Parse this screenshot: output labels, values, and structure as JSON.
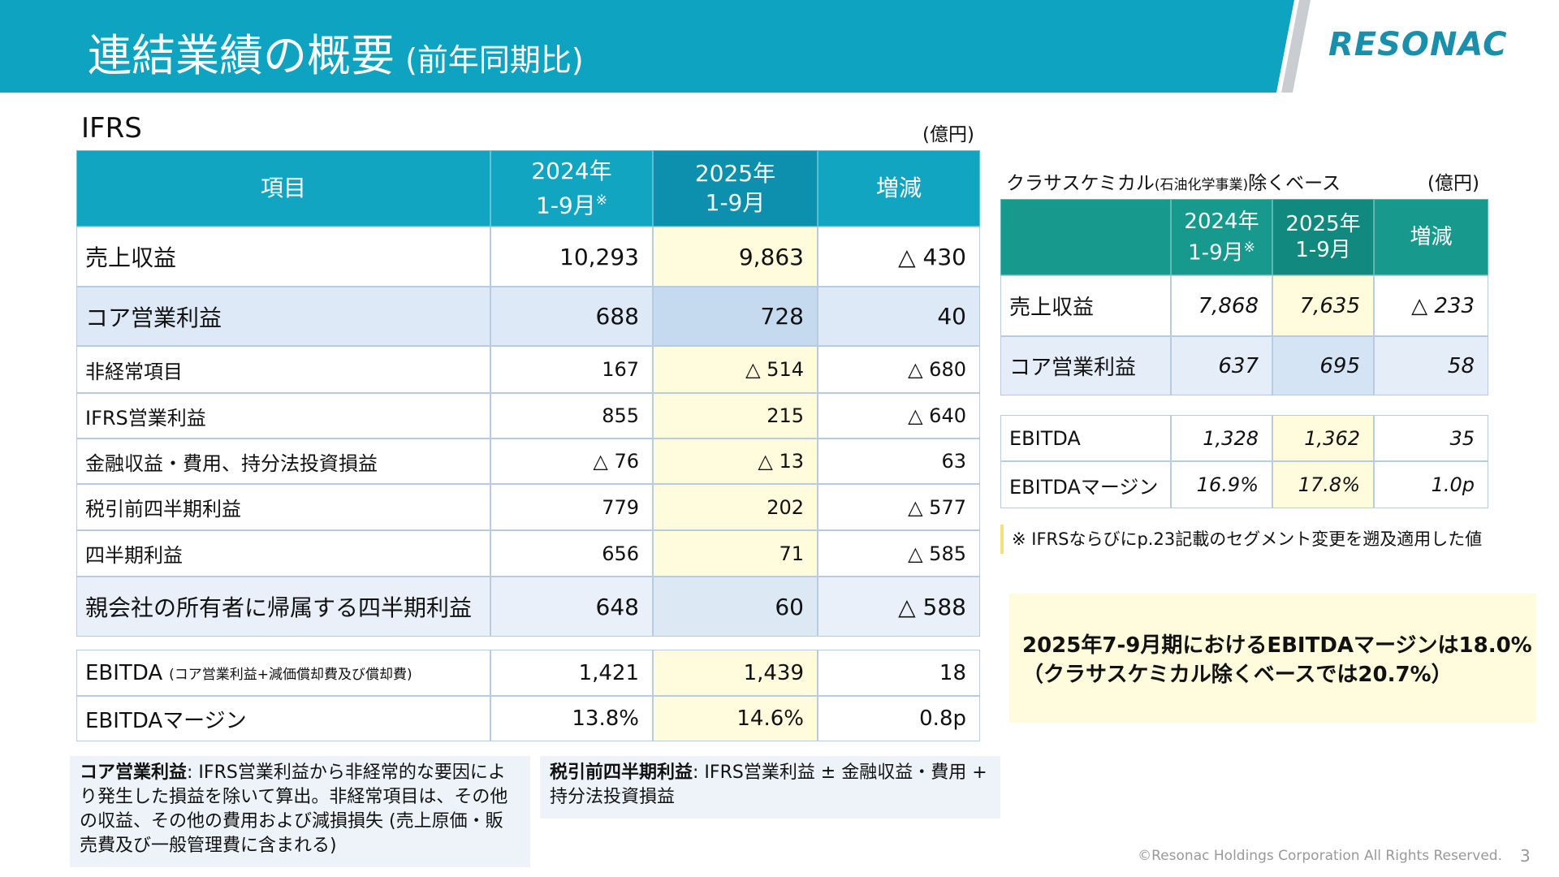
{
  "header": {
    "title": "連結業績の概要",
    "subtitle": "(前年同期比)",
    "logo": "RESONAC"
  },
  "ifrs_table": {
    "label": "IFRS",
    "unit": "(億円)",
    "columns": [
      {
        "lines": [
          "項目"
        ]
      },
      {
        "lines": [
          "2024年",
          "1-9月"
        ],
        "note": "※"
      },
      {
        "lines": [
          "2025年",
          "1-9月"
        ]
      },
      {
        "lines": [
          "増減"
        ]
      }
    ],
    "rows": [
      {
        "label": "売上収益",
        "values": [
          "10,293",
          "9,863",
          "△ 430"
        ]
      },
      {
        "label": "コア営業利益",
        "values": [
          "688",
          "728",
          "40"
        ]
      },
      {
        "label": "非経常項目",
        "values": [
          "167",
          "△ 514",
          "△ 680"
        ]
      },
      {
        "label": "IFRS営業利益",
        "values": [
          "855",
          "215",
          "△ 640"
        ]
      },
      {
        "label": "金融収益・費用、持分法投資損益",
        "values": [
          "△ 76",
          "△ 13",
          "63"
        ]
      },
      {
        "label": "税引前四半期利益",
        "values": [
          "779",
          "202",
          "△ 577"
        ]
      },
      {
        "label": "四半期利益",
        "values": [
          "656",
          "71",
          "△ 585"
        ]
      },
      {
        "label": "親会社の所有者に帰属する四半期利益",
        "values": [
          "648",
          "60",
          "△ 588"
        ]
      }
    ],
    "ebitda_rows": [
      {
        "label": "EBITDA",
        "sublabel": "(コア営業利益+減価償却費及び償却費)",
        "values": [
          "1,421",
          "1,439",
          "18"
        ]
      },
      {
        "label": "EBITDAマージン",
        "values": [
          "13.8%",
          "14.6%",
          "0.8p"
        ]
      }
    ]
  },
  "ex_table": {
    "title": "クラサスケミカル",
    "title_small": "(石油化学事業)",
    "title_end": "除くベース",
    "unit": "(億円)",
    "columns": [
      {
        "lines": []
      },
      {
        "lines": [
          "2024年",
          "1-9月"
        ],
        "note": "※"
      },
      {
        "lines": [
          "2025年",
          "1-9月"
        ]
      },
      {
        "lines": [
          "増減"
        ]
      }
    ],
    "rows": [
      {
        "label": "売上収益",
        "values": [
          "7,868",
          "7,635",
          "△ 233"
        ]
      },
      {
        "label": "コア営業利益",
        "values": [
          "637",
          "695",
          "58"
        ]
      }
    ],
    "ebitda_rows": [
      {
        "label": "EBITDA",
        "values": [
          "1,328",
          "1,362",
          "35"
        ]
      },
      {
        "label": "EBITDAマージン",
        "values": [
          "16.9%",
          "17.8%",
          "1.0p"
        ]
      }
    ],
    "note": "※ IFRSならびにp.23記載のセグメント変更を遡及適用した値"
  },
  "highlight": {
    "line1": "2025年7-9月期におけるEBITDAマージンは18.0%",
    "line2": "（クラサスケミカル除くベースでは20.7%）"
  },
  "definitions": [
    {
      "term": "コア営業利益",
      "text": ": IFRS営業利益から非経常的な要因により発生した損益を除いて算出。非経常項目は、その他の収益、その他の費用および減損損失 (売上原価・販売費及び一般管理費に含まれる)"
    },
    {
      "term": "税引前四半期利益",
      "text": ": IFRS営業利益 ± 金融収益・費用 + 持分法投資損益"
    }
  ],
  "footer": {
    "copyright": "©Resonac Holdings Corporation  All Rights Reserved.",
    "page": "3"
  }
}
